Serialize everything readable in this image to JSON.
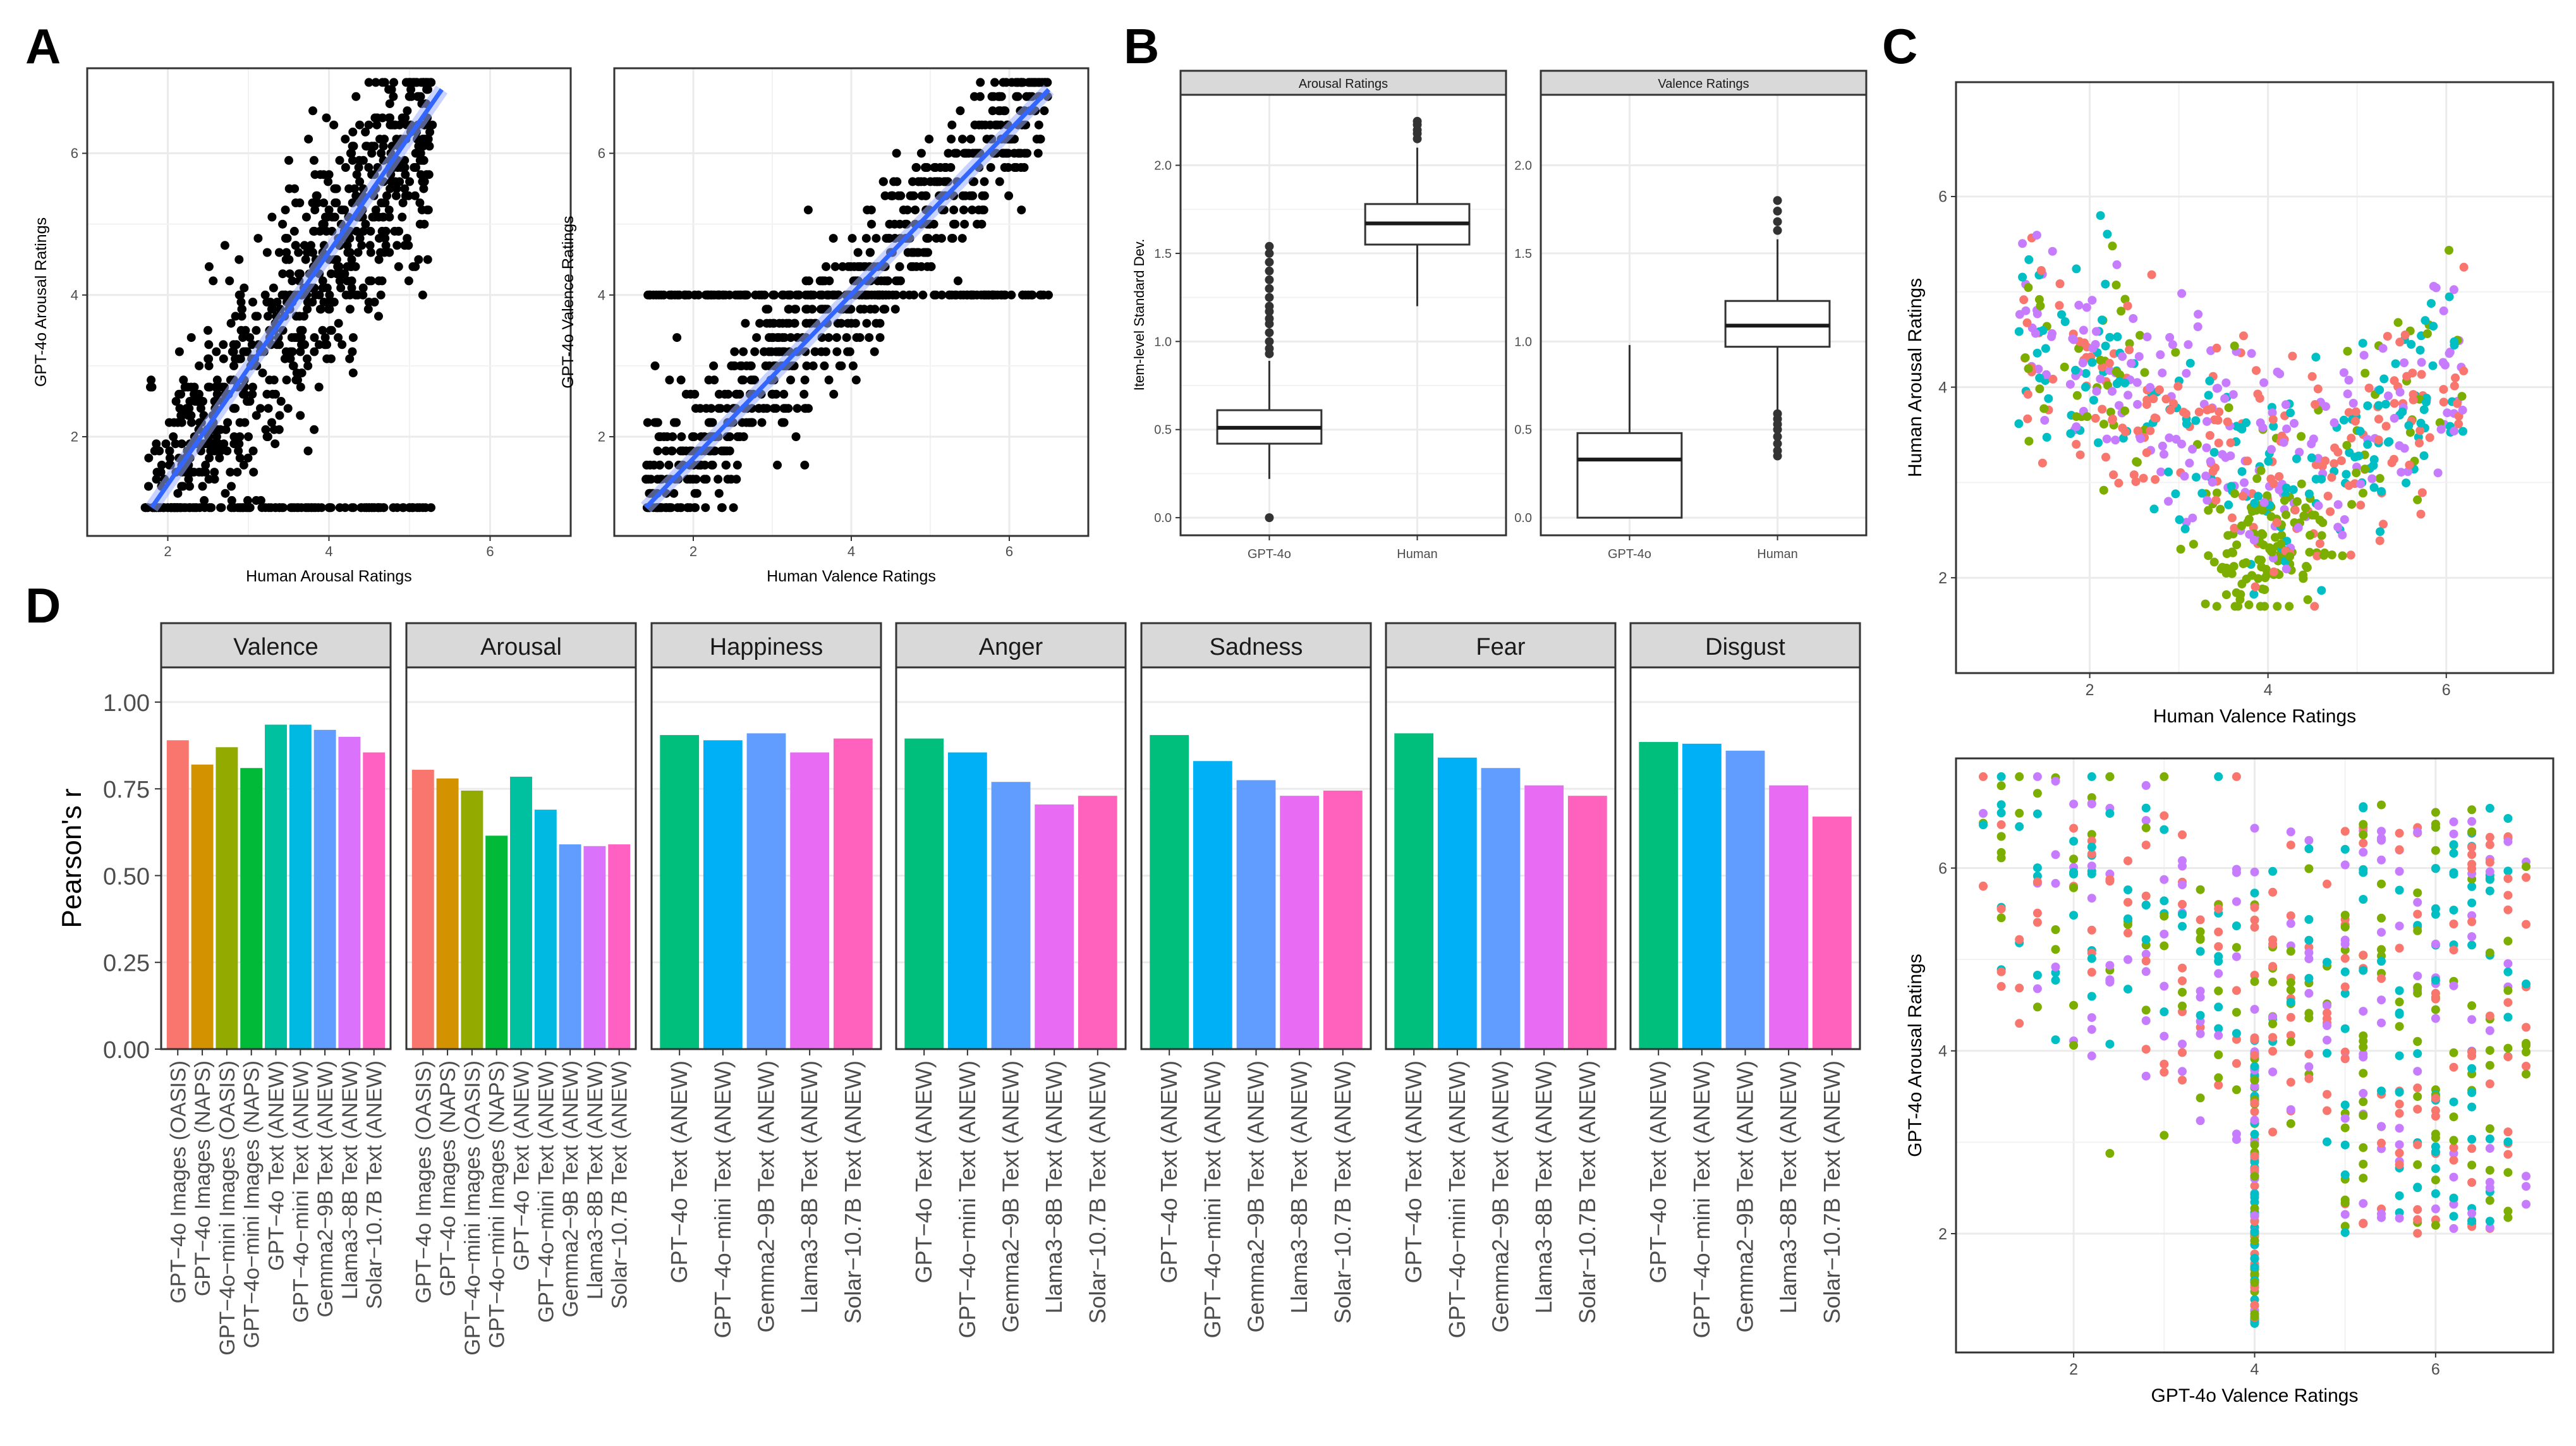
{
  "panels": {
    "A": {
      "label": "A",
      "plots": [
        {
          "xlabel": "Human Arousal Ratings",
          "ylabel": "GPT-4o Arousal Ratings",
          "xlim": [
            1.0,
            7.0
          ],
          "ylim": [
            0.6,
            7.2
          ],
          "xticks": [
            2,
            4,
            6
          ],
          "yticks": [
            2,
            4,
            6
          ],
          "fit": {
            "x": [
              1.8,
              5.4
            ],
            "y": [
              1.0,
              6.9
            ]
          }
        },
        {
          "xlabel": "Human Valence Ratings",
          "ylabel": "GPT-4o Valence Ratings",
          "xlim": [
            1.0,
            7.0
          ],
          "ylim": [
            0.6,
            7.2
          ],
          "xticks": [
            2,
            4,
            6
          ],
          "yticks": [
            2,
            4,
            6
          ],
          "fit": {
            "x": [
              1.4,
              6.5
            ],
            "y": [
              1.0,
              6.9
            ]
          }
        }
      ]
    },
    "B": {
      "label": "B",
      "ylabel": "Item-level Standard Dev.",
      "ylim": [
        -0.1,
        2.4
      ],
      "yticks": [
        "0.0",
        "0.5",
        "1.0",
        "1.5",
        "2.0"
      ],
      "facets": [
        {
          "title": "Arousal Ratings",
          "boxes": [
            {
              "name": "GPT-4o",
              "q1": 0.42,
              "median": 0.51,
              "q3": 0.61,
              "whisker_low": 0.22,
              "whisker_high": 0.89,
              "outliers": [
                0.0,
                0.93,
                0.96,
                1.0,
                1.05,
                1.1,
                1.13,
                1.17,
                1.2,
                1.25,
                1.3,
                1.35,
                1.4,
                1.45,
                1.5,
                1.54
              ]
            },
            {
              "name": "Human",
              "q1": 1.55,
              "median": 1.67,
              "q3": 1.78,
              "whisker_low": 1.2,
              "whisker_high": 2.1,
              "outliers": [
                2.15,
                2.18,
                2.2,
                2.23,
                2.25
              ]
            }
          ]
        },
        {
          "title": "Valence Ratings",
          "boxes": [
            {
              "name": "GPT-4o",
              "q1": 0.0,
              "median": 0.33,
              "q3": 0.48,
              "whisker_low": 0.0,
              "whisker_high": 0.98,
              "outliers": []
            },
            {
              "name": "Human",
              "q1": 0.97,
              "median": 1.09,
              "q3": 1.23,
              "whisker_low": 0.6,
              "whisker_high": 1.58,
              "outliers": [
                0.35,
                0.38,
                0.42,
                0.46,
                0.5,
                0.53,
                0.56,
                0.59,
                1.63,
                1.68,
                1.74,
                1.8
              ]
            }
          ]
        }
      ]
    },
    "C": {
      "label": "C",
      "plots": [
        {
          "xlabel": "Human Valence Ratings",
          "ylabel": "Human Arousal Ratings",
          "xlim": [
            0.5,
            7.2
          ],
          "ylim": [
            1.0,
            7.2
          ],
          "xticks": [
            2,
            4,
            6
          ],
          "yticks": [
            2,
            4,
            6
          ]
        },
        {
          "xlabel": "GPT-4o Valence Ratings",
          "ylabel": "GPT-4o Arousal Ratings",
          "xlim": [
            0.7,
            7.3
          ],
          "ylim": [
            0.7,
            7.2
          ],
          "xticks": [
            2,
            4,
            6
          ],
          "yticks": [
            2,
            4,
            6
          ]
        }
      ]
    },
    "D": {
      "label": "D",
      "ylabel": "Pearson's r",
      "ylim": [
        0,
        1.1
      ],
      "yticks": [
        "0.00",
        "0.25",
        "0.50",
        "0.75",
        "1.00"
      ]
    }
  },
  "colors": {
    "fit_line": "#3366ff",
    "groups": [
      "#F8766D",
      "#7CAE00",
      "#00BFC4",
      "#C77CFF"
    ]
  },
  "chart_data": [
    {
      "type": "scatter",
      "panel": "A-left",
      "xlabel": "Human Arousal Ratings",
      "ylabel": "GPT-4o Arousal Ratings",
      "note": "~1000 items; approximated point cloud with linear fit",
      "trend": {
        "slope": 1.6,
        "intercept": -1.9
      }
    },
    {
      "type": "scatter",
      "panel": "A-right",
      "xlabel": "Human Valence Ratings",
      "ylabel": "GPT-4o Valence Ratings",
      "note": "~1000 items; approximated point cloud with linear fit",
      "trend": {
        "slope": 1.16,
        "intercept": -0.6
      }
    },
    {
      "type": "bar",
      "panel": "D",
      "ylabel": "Pearson's r",
      "facets": [
        {
          "title": "Valence",
          "categories": [
            "GPT−4o Images (OASIS)",
            "GPT−4o Images (NAPS)",
            "GPT−4o−mini Images (OASIS)",
            "GPT−4o−mini Images (NAPS)",
            "GPT−4o Text (ANEW)",
            "GPT−4o−mini Text (ANEW)",
            "Gemma2−9B Text (ANEW)",
            "Llama3−8B Text (ANEW)",
            "Solar−10.7B Text (ANEW)"
          ],
          "values": [
            0.89,
            0.82,
            0.87,
            0.81,
            0.935,
            0.935,
            0.92,
            0.9,
            0.855
          ]
        },
        {
          "title": "Arousal",
          "categories": [
            "GPT−4o Images (OASIS)",
            "GPT−4o Images (NAPS)",
            "GPT−4o−mini Images (OASIS)",
            "GPT−4o−mini Images (NAPS)",
            "GPT−4o Text (ANEW)",
            "GPT−4o−mini Text (ANEW)",
            "Gemma2−9B Text (ANEW)",
            "Llama3−8B Text (ANEW)",
            "Solar−10.7B Text (ANEW)"
          ],
          "values": [
            0.805,
            0.78,
            0.745,
            0.615,
            0.785,
            0.69,
            0.59,
            0.585,
            0.59
          ]
        },
        {
          "title": "Happiness",
          "categories": [
            "GPT−4o Text (ANEW)",
            "GPT−4o−mini Text (ANEW)",
            "Gemma2−9B Text (ANEW)",
            "Llama3−8B Text (ANEW)",
            "Solar−10.7B Text (ANEW)"
          ],
          "values": [
            0.905,
            0.89,
            0.91,
            0.855,
            0.895
          ]
        },
        {
          "title": "Anger",
          "categories": [
            "GPT−4o Text (ANEW)",
            "GPT−4o−mini Text (ANEW)",
            "Gemma2−9B Text (ANEW)",
            "Llama3−8B Text (ANEW)",
            "Solar−10.7B Text (ANEW)"
          ],
          "values": [
            0.895,
            0.855,
            0.77,
            0.705,
            0.73
          ]
        },
        {
          "title": "Sadness",
          "categories": [
            "GPT−4o Text (ANEW)",
            "GPT−4o−mini Text (ANEW)",
            "Gemma2−9B Text (ANEW)",
            "Llama3−8B Text (ANEW)",
            "Solar−10.7B Text (ANEW)"
          ],
          "values": [
            0.905,
            0.83,
            0.775,
            0.73,
            0.745
          ]
        },
        {
          "title": "Fear",
          "categories": [
            "GPT−4o Text (ANEW)",
            "GPT−4o−mini Text (ANEW)",
            "Gemma2−9B Text (ANEW)",
            "Llama3−8B Text (ANEW)",
            "Solar−10.7B Text (ANEW)"
          ],
          "values": [
            0.91,
            0.84,
            0.81,
            0.76,
            0.73
          ]
        },
        {
          "title": "Disgust",
          "categories": [
            "GPT−4o Text (ANEW)",
            "GPT−4o−mini Text (ANEW)",
            "Gemma2−9B Text (ANEW)",
            "Llama3−8B Text (ANEW)",
            "Solar−10.7B Text (ANEW)"
          ],
          "values": [
            0.885,
            0.88,
            0.86,
            0.76,
            0.67
          ]
        }
      ],
      "bar_colors_9": [
        "#F8766D",
        "#D39200",
        "#93AA00",
        "#00BA38",
        "#00C19F",
        "#00B9E3",
        "#619CFF",
        "#DB72FB",
        "#FF61C3"
      ],
      "bar_colors_5": [
        "#00BF7D",
        "#00B0F6",
        "#619CFF",
        "#E76BF3",
        "#FF62BC"
      ]
    }
  ]
}
